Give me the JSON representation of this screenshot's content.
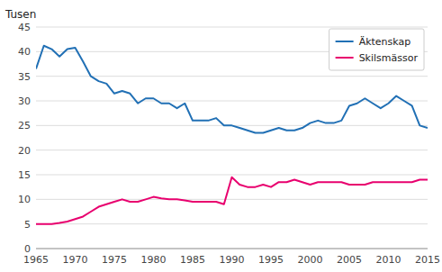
{
  "chart_data": {
    "type": "line",
    "ylabel": "Tusen",
    "x": [
      1965,
      1966,
      1967,
      1968,
      1969,
      1970,
      1971,
      1972,
      1973,
      1974,
      1975,
      1976,
      1977,
      1978,
      1979,
      1980,
      1981,
      1982,
      1983,
      1984,
      1985,
      1986,
      1987,
      1988,
      1989,
      1990,
      1991,
      1992,
      1993,
      1994,
      1995,
      1996,
      1997,
      1998,
      1999,
      2000,
      2001,
      2002,
      2003,
      2004,
      2005,
      2006,
      2007,
      2008,
      2009,
      2010,
      2011,
      2012,
      2013,
      2014,
      2015
    ],
    "series": [
      {
        "name": "Äktenskap",
        "color": "#2170b5",
        "values": [
          36.5,
          41.2,
          40.5,
          39.0,
          40.5,
          40.8,
          38.0,
          35.0,
          34.0,
          33.5,
          31.5,
          32.0,
          31.5,
          29.5,
          30.5,
          30.5,
          29.5,
          29.5,
          28.5,
          29.5,
          26.0,
          26.0,
          26.0,
          26.5,
          25.0,
          25.0,
          24.5,
          24.0,
          23.5,
          23.5,
          24.0,
          24.5,
          24.0,
          24.0,
          24.5,
          25.5,
          26.0,
          25.5,
          25.5,
          26.0,
          29.0,
          29.5,
          30.5,
          29.5,
          28.5,
          29.5,
          31.0,
          30.0,
          29.0,
          25.0,
          24.5
        ]
      },
      {
        "name": "Skilsmässor",
        "color": "#e8006e",
        "values": [
          5.0,
          5.0,
          5.0,
          5.2,
          5.5,
          6.0,
          6.5,
          7.5,
          8.5,
          9.0,
          9.5,
          10.0,
          9.5,
          9.5,
          10.0,
          10.5,
          10.2,
          10.0,
          10.0,
          9.8,
          9.5,
          9.5,
          9.5,
          9.5,
          9.0,
          14.5,
          13.0,
          12.5,
          12.5,
          13.0,
          12.5,
          13.5,
          13.5,
          14.0,
          13.5,
          13.0,
          13.5,
          13.5,
          13.5,
          13.5,
          13.0,
          13.0,
          13.0,
          13.5,
          13.5,
          13.5,
          13.5,
          13.5,
          13.5,
          14.0,
          14.0
        ]
      }
    ],
    "xlim": [
      1965,
      2015
    ],
    "ylim": [
      0,
      45
    ],
    "xticks": [
      1965,
      1970,
      1975,
      1980,
      1985,
      1990,
      1995,
      2000,
      2005,
      2010,
      2015
    ],
    "yticks": [
      0,
      5,
      10,
      15,
      20,
      25,
      30,
      35,
      40,
      45
    ],
    "grid": true,
    "legend": "upper right"
  }
}
